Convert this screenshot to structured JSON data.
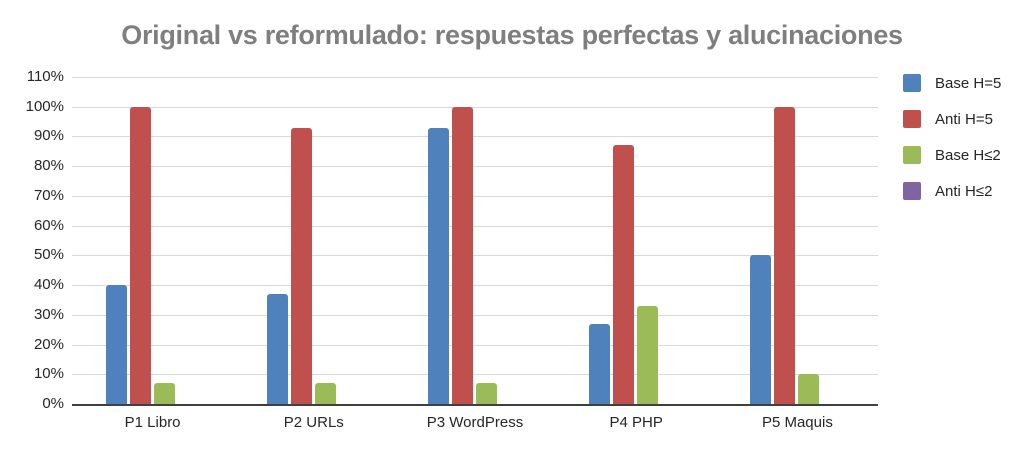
{
  "chart_data": {
    "type": "bar",
    "title": "Original vs reformulado: respuestas perfectas y alucinaciones",
    "xlabel": "",
    "ylabel": "",
    "ylim": [
      0,
      110
    ],
    "yticks": [
      "0%",
      "10%",
      "20%",
      "30%",
      "40%",
      "50%",
      "60%",
      "70%",
      "80%",
      "90%",
      "100%",
      "110%"
    ],
    "grid": true,
    "legend_position": "right",
    "categories": [
      "P1 Libro",
      "P2 URLs",
      "P3 WordPress",
      "P4 PHP",
      "P5 Maquis"
    ],
    "series": [
      {
        "name": "Base H=5",
        "color": "#4f81bd",
        "values": [
          40,
          37,
          93,
          27,
          50
        ]
      },
      {
        "name": "Anti H=5",
        "color": "#c0504d",
        "values": [
          100,
          93,
          100,
          87,
          100
        ]
      },
      {
        "name": "Base H≤2",
        "color": "#9bbb59",
        "values": [
          7,
          7,
          7,
          33,
          10
        ]
      },
      {
        "name": "Anti H≤2",
        "color": "#8064a2",
        "values": [
          0,
          0,
          0,
          0,
          0
        ]
      }
    ]
  }
}
